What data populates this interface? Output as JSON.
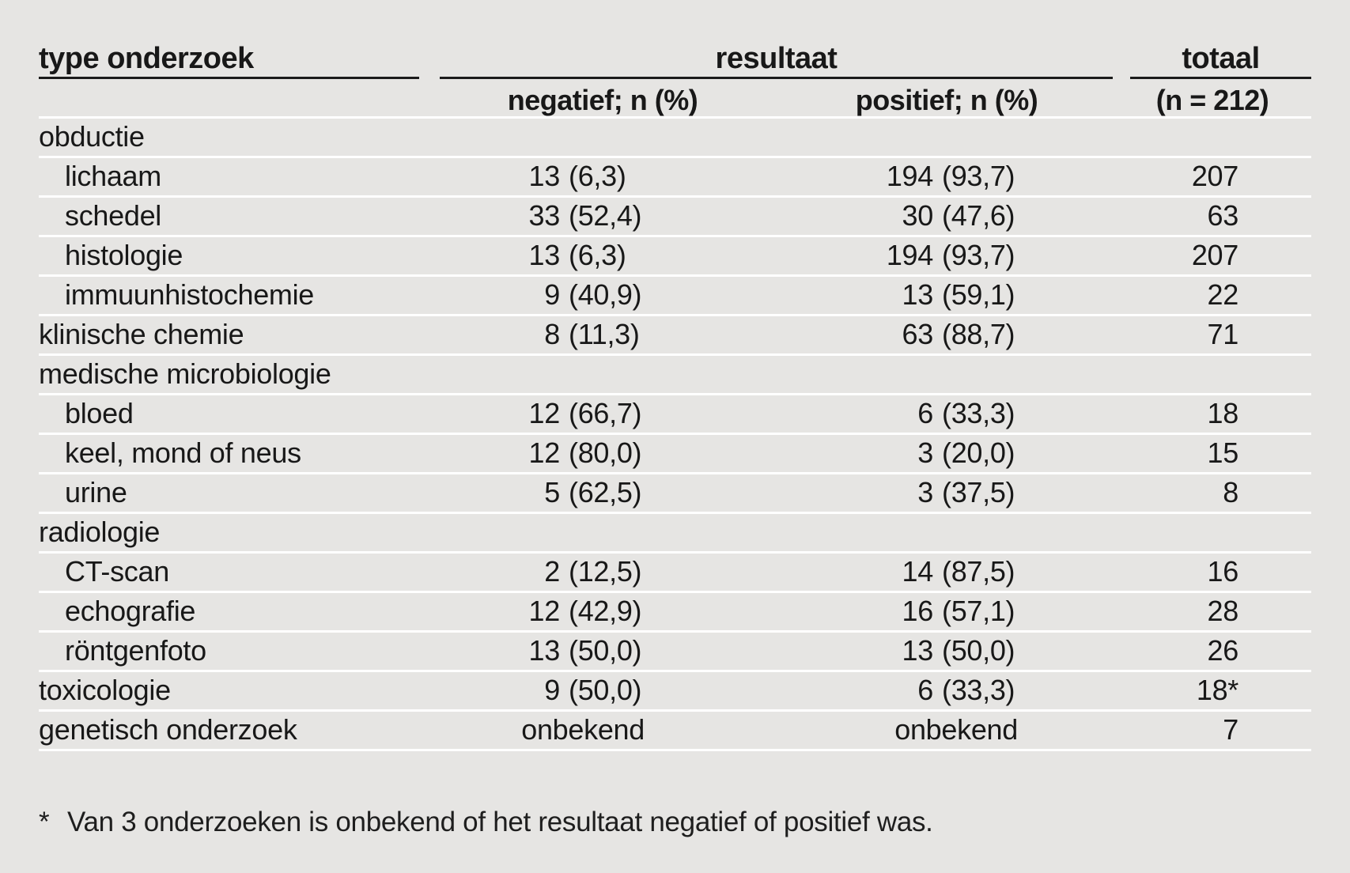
{
  "table": {
    "col1_header": "type onderzoek",
    "group_header": "resultaat",
    "total_header": "totaal",
    "sub_headers": {
      "negatief": "negatief; n (%)",
      "positief": "positief; n (%)",
      "total_sub": "(n = 212)"
    },
    "rows": [
      {
        "label": "obductie",
        "indent": false,
        "neg": null,
        "pos": null,
        "total": ""
      },
      {
        "label": "lichaam",
        "indent": true,
        "neg": {
          "n": "13",
          "pct": "(6,3)"
        },
        "pos": {
          "n": "194",
          "pct": "(93,7)"
        },
        "total": "207"
      },
      {
        "label": "schedel",
        "indent": true,
        "neg": {
          "n": "33",
          "pct": "(52,4)"
        },
        "pos": {
          "n": "30",
          "pct": "(47,6)"
        },
        "total": "63"
      },
      {
        "label": "histologie",
        "indent": true,
        "neg": {
          "n": "13",
          "pct": "(6,3)"
        },
        "pos": {
          "n": "194",
          "pct": "(93,7)"
        },
        "total": "207"
      },
      {
        "label": "immuunhistochemie",
        "indent": true,
        "neg": {
          "n": "9",
          "pct": "(40,9)"
        },
        "pos": {
          "n": "13",
          "pct": "(59,1)"
        },
        "total": "22"
      },
      {
        "label": "klinische chemie",
        "indent": false,
        "neg": {
          "n": "8",
          "pct": "(11,3)"
        },
        "pos": {
          "n": "63",
          "pct": "(88,7)"
        },
        "total": "71"
      },
      {
        "label": "medische microbiologie",
        "indent": false,
        "neg": null,
        "pos": null,
        "total": ""
      },
      {
        "label": "bloed",
        "indent": true,
        "neg": {
          "n": "12",
          "pct": "(66,7)"
        },
        "pos": {
          "n": "6",
          "pct": "(33,3)"
        },
        "total": "18"
      },
      {
        "label": "keel, mond of neus",
        "indent": true,
        "neg": {
          "n": "12",
          "pct": "(80,0)"
        },
        "pos": {
          "n": "3",
          "pct": "(20,0)"
        },
        "total": "15"
      },
      {
        "label": "urine",
        "indent": true,
        "neg": {
          "n": "5",
          "pct": "(62,5)"
        },
        "pos": {
          "n": "3",
          "pct": "(37,5)"
        },
        "total": "8"
      },
      {
        "label": "radiologie",
        "indent": false,
        "neg": null,
        "pos": null,
        "total": ""
      },
      {
        "label": "CT-scan",
        "indent": true,
        "neg": {
          "n": "2",
          "pct": "(12,5)"
        },
        "pos": {
          "n": "14",
          "pct": "(87,5)"
        },
        "total": "16"
      },
      {
        "label": "echografie",
        "indent": true,
        "neg": {
          "n": "12",
          "pct": "(42,9)"
        },
        "pos": {
          "n": "16",
          "pct": "(57,1)"
        },
        "total": "28"
      },
      {
        "label": "röntgenfoto",
        "indent": true,
        "neg": {
          "n": "13",
          "pct": "(50,0)"
        },
        "pos": {
          "n": "13",
          "pct": "(50,0)"
        },
        "total": "26"
      },
      {
        "label": "toxicologie",
        "indent": false,
        "neg": {
          "n": "9",
          "pct": "(50,0)"
        },
        "pos": {
          "n": "6",
          "pct": "(33,3)"
        },
        "total": "18*"
      },
      {
        "label": "genetisch onderzoek",
        "indent": false,
        "neg": {
          "text": "onbekend"
        },
        "pos": {
          "text": "onbekend"
        },
        "total": "7"
      }
    ],
    "footnote_marker": "*",
    "footnote_text": "Van 3 onderzoeken is onbekend of het resultaat negatief of positief was."
  },
  "colors": {
    "background": "#e6e5e3",
    "rule_dark": "#1b1b1b",
    "row_divider": "#ffffff",
    "text": "#181818"
  }
}
